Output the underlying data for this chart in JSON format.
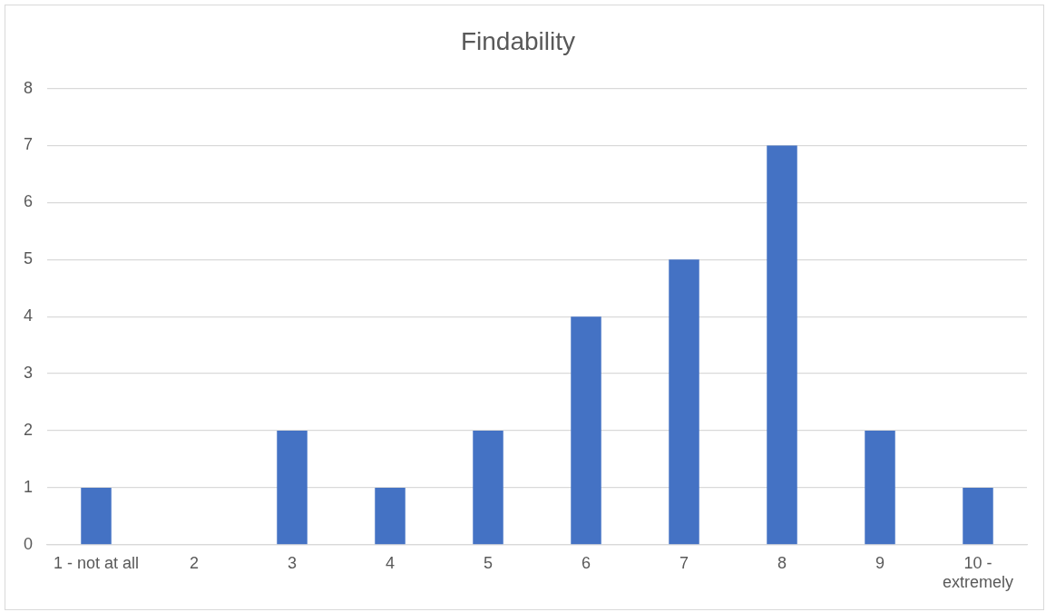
{
  "chart_data": {
    "type": "bar",
    "title": "Findability",
    "categories": [
      "1 - not at all",
      "2",
      "3",
      "4",
      "5",
      "6",
      "7",
      "8",
      "9",
      "10 - extremely"
    ],
    "values": [
      1,
      0,
      2,
      1,
      2,
      4,
      5,
      7,
      2,
      1
    ],
    "color": "#4472c4",
    "ylim": [
      0,
      8
    ],
    "yticks": [
      0,
      1,
      2,
      3,
      4,
      5,
      6,
      7,
      8
    ],
    "grid": "y",
    "legend": false
  }
}
